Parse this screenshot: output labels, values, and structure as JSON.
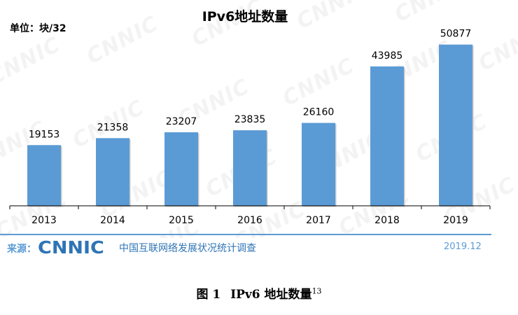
{
  "chart_data": {
    "type": "bar",
    "title": "IPv6地址数量",
    "unit_label": "单位：块/32",
    "categories": [
      "2013",
      "2014",
      "2015",
      "2016",
      "2017",
      "2018",
      "2019"
    ],
    "values": [
      19153,
      21358,
      23207,
      23835,
      26160,
      43985,
      50877
    ],
    "ylim": [
      0,
      55000
    ],
    "grid": false,
    "legend": "none",
    "bar_color": "#5b9bd5"
  },
  "footer": {
    "source_label": "来源：",
    "logo_text": "CNNIC",
    "survey_name": "中国互联网络发展状况统计调查",
    "date": "2019.12"
  },
  "caption": {
    "figure_label": "图  1",
    "title": "IPv6 地址数量",
    "footnote": "13"
  },
  "watermark_text": "CNNIC",
  "colors": {
    "accent": "#5b9bd5",
    "brand": "#2e74b5"
  }
}
